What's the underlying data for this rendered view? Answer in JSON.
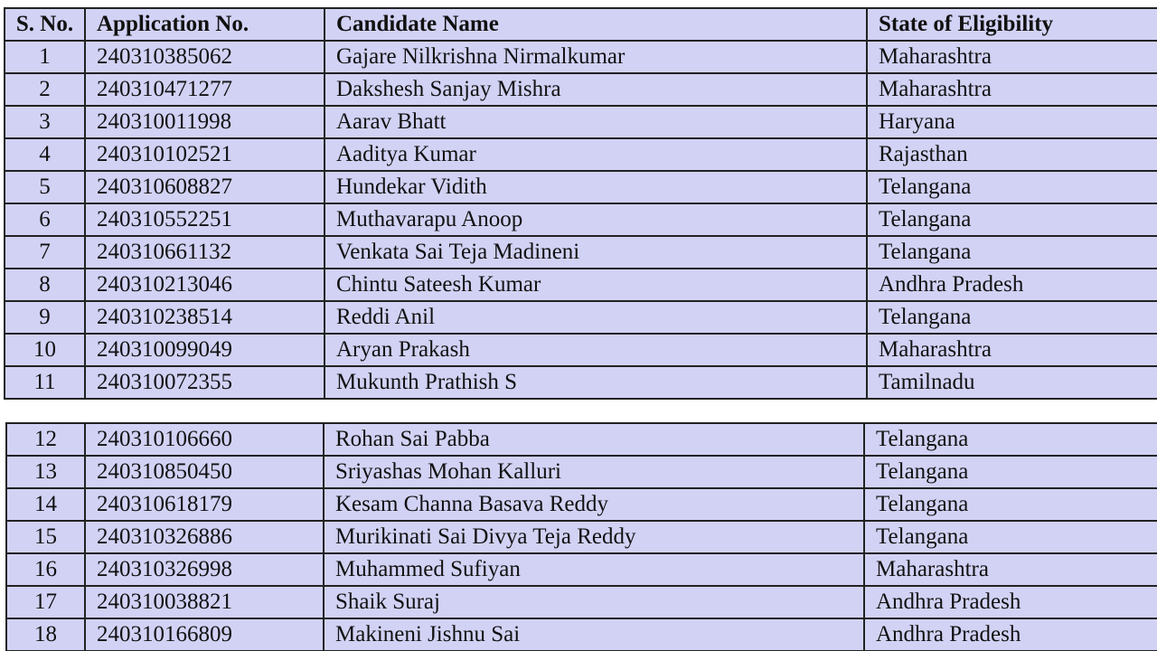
{
  "table": {
    "headers": [
      "S. No.",
      "Application No.",
      "Candidate Name",
      "State of Eligibility"
    ],
    "rows_part1": [
      [
        "1",
        "240310385062",
        "Gajare Nilkrishna Nirmalkumar",
        "Maharashtra"
      ],
      [
        "2",
        "240310471277",
        "Dakshesh Sanjay Mishra",
        "Maharashtra"
      ],
      [
        "3",
        "240310011998",
        "Aarav Bhatt",
        "Haryana"
      ],
      [
        "4",
        "240310102521",
        "Aaditya Kumar",
        "Rajasthan"
      ],
      [
        "5",
        "240310608827",
        "Hundekar Vidith",
        "Telangana"
      ],
      [
        "6",
        "240310552251",
        "Muthavarapu Anoop",
        "Telangana"
      ],
      [
        "7",
        "240310661132",
        "Venkata Sai Teja Madineni",
        "Telangana"
      ],
      [
        "8",
        "240310213046",
        "Chintu Sateesh Kumar",
        "Andhra Pradesh"
      ],
      [
        "9",
        "240310238514",
        "Reddi Anil",
        "Telangana"
      ],
      [
        "10",
        "240310099049",
        "Aryan Prakash",
        "Maharashtra"
      ],
      [
        "11",
        "240310072355",
        "Mukunth Prathish S",
        "Tamilnadu"
      ]
    ],
    "rows_part2": [
      [
        "12",
        "240310106660",
        "Rohan Sai Pabba",
        "Telangana"
      ],
      [
        "13",
        "240310850450",
        "Sriyashas Mohan Kalluri",
        "Telangana"
      ],
      [
        "14",
        "240310618179",
        "Kesam Channa Basava Reddy",
        "Telangana"
      ],
      [
        "15",
        "240310326886",
        "Murikinati Sai Divya Teja Reddy",
        "Telangana"
      ],
      [
        "16",
        "240310326998",
        "Muhammed Sufiyan",
        "Maharashtra"
      ],
      [
        "17",
        "240310038821",
        "Shaik Suraj",
        "Andhra Pradesh"
      ],
      [
        "18",
        "240310166809",
        "Makineni Jishnu Sai",
        "Andhra Pradesh"
      ]
    ]
  },
  "colors": {
    "cell_background": "#d2d2f5",
    "border": "#222222"
  }
}
